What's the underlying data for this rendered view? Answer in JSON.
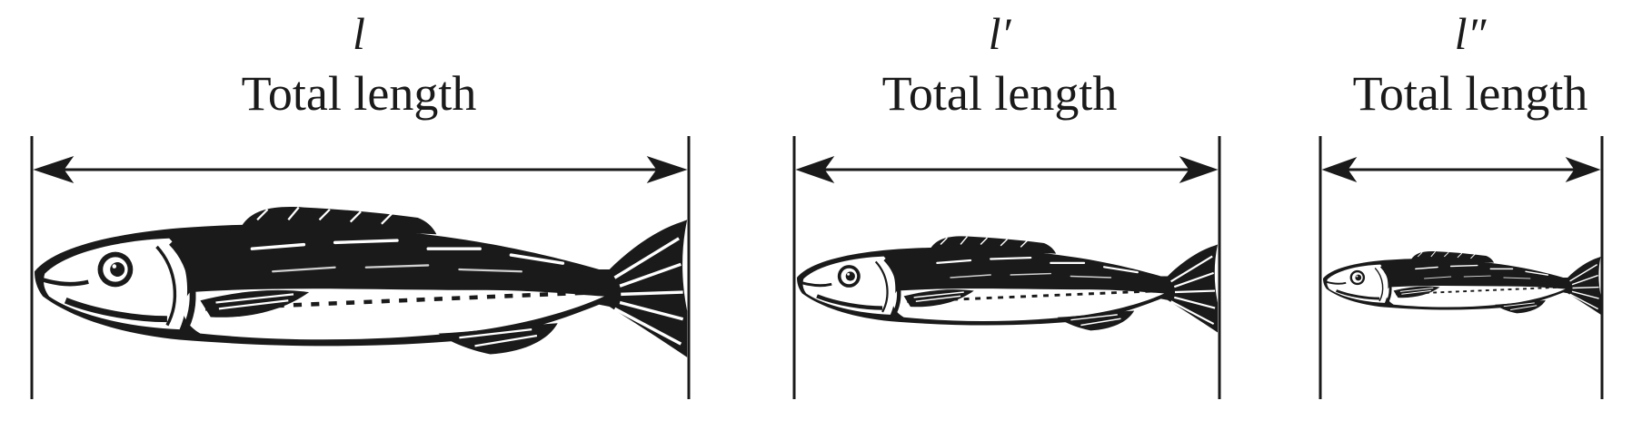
{
  "panels": [
    {
      "variable": "l",
      "label": "Total length"
    },
    {
      "variable": "l′",
      "label": "Total length"
    },
    {
      "variable": "l″",
      "label": "Total length"
    }
  ],
  "colors": {
    "ink": "#1a1a1a",
    "belly": "#ffffff"
  },
  "icons": [
    "fish-icon",
    "dimension-arrow"
  ]
}
